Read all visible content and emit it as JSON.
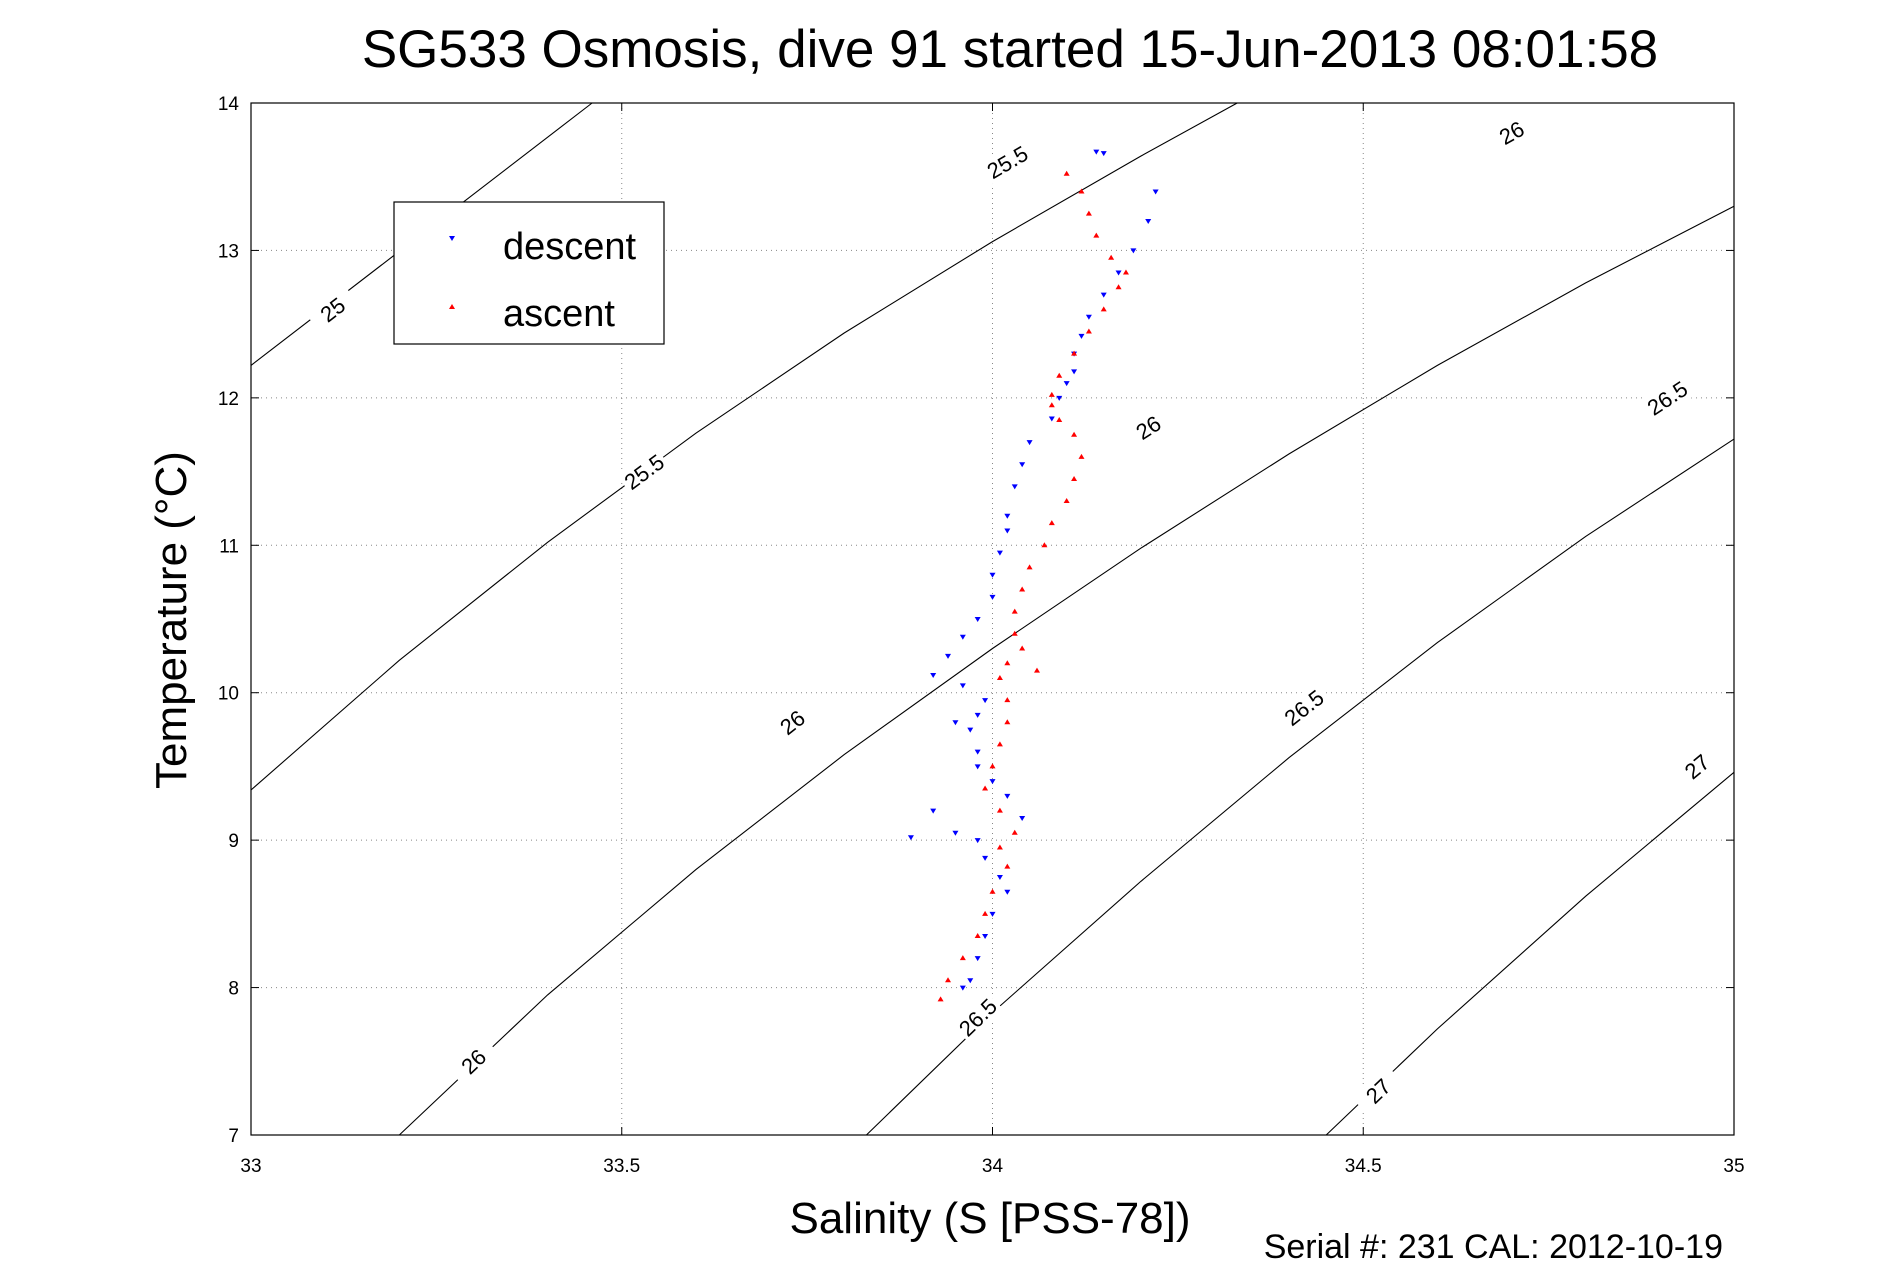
{
  "chart_data": {
    "type": "scatter",
    "title": "SG533 Osmosis, dive 91 started 15-Jun-2013 08:01:58",
    "xlabel": "Salinity (S [PSS-78])",
    "ylabel": "Temperature (°C)",
    "xlim": [
      33,
      35
    ],
    "ylim": [
      7,
      14
    ],
    "x_ticks": [
      "33",
      "33.5",
      "34",
      "34.5",
      "35"
    ],
    "y_ticks": [
      "7",
      "8",
      "9",
      "10",
      "11",
      "12",
      "13",
      "14"
    ],
    "grid": true,
    "legend_position": "top-left",
    "footer": "Serial #: 231  CAL: 2012-10-19",
    "contours": [
      {
        "label": "25",
        "points": [
          [
            33.0,
            12.22
          ],
          [
            33.46,
            14.0
          ]
        ],
        "labels_at": [
          [
            33.11,
            12.6
          ]
        ]
      },
      {
        "label": "25.5",
        "points": [
          [
            33.0,
            9.34
          ],
          [
            33.2,
            10.22
          ],
          [
            33.4,
            11.02
          ],
          [
            33.6,
            11.76
          ],
          [
            33.8,
            12.44
          ],
          [
            34.0,
            13.06
          ],
          [
            34.2,
            13.64
          ],
          [
            34.33,
            14.0
          ]
        ],
        "labels_at": [
          [
            33.53,
            11.5
          ],
          [
            34.02,
            13.6
          ]
        ]
      },
      {
        "label": "26",
        "points": [
          [
            33.2,
            7.0
          ],
          [
            33.4,
            7.95
          ],
          [
            33.6,
            8.8
          ],
          [
            33.8,
            9.58
          ],
          [
            34.0,
            10.3
          ],
          [
            34.2,
            10.98
          ],
          [
            34.4,
            11.62
          ],
          [
            34.6,
            12.22
          ],
          [
            34.8,
            12.78
          ],
          [
            35.0,
            13.3
          ]
        ],
        "labels_at": [
          [
            33.3,
            7.5
          ],
          [
            33.73,
            9.8
          ],
          [
            34.21,
            11.8
          ],
          [
            34.7,
            13.8
          ]
        ]
      },
      {
        "label": "26.5",
        "points": [
          [
            33.83,
            7.0
          ],
          [
            34.0,
            7.83
          ],
          [
            34.2,
            8.72
          ],
          [
            34.4,
            9.56
          ],
          [
            34.6,
            10.34
          ],
          [
            34.8,
            11.06
          ],
          [
            35.0,
            11.72
          ]
        ],
        "labels_at": [
          [
            33.98,
            7.8
          ],
          [
            34.42,
            9.9
          ],
          [
            34.91,
            12.0
          ]
        ]
      },
      {
        "label": "27",
        "points": [
          [
            34.45,
            7.0
          ],
          [
            34.6,
            7.72
          ],
          [
            34.8,
            8.62
          ],
          [
            35.0,
            9.46
          ]
        ],
        "labels_at": [
          [
            34.52,
            7.3
          ],
          [
            34.95,
            9.5
          ]
        ]
      }
    ],
    "series": [
      {
        "name": "descent",
        "color": "#0000ff",
        "marker": "triangle-down",
        "x": [
          34.14,
          34.15,
          34.22,
          34.21,
          34.19,
          34.17,
          34.15,
          34.13,
          34.12,
          34.11,
          34.11,
          34.1,
          34.09,
          34.08,
          34.05,
          34.04,
          34.03,
          34.02,
          34.02,
          34.01,
          34.0,
          34.0,
          33.98,
          33.96,
          33.94,
          33.92,
          33.96,
          33.99,
          33.98,
          33.97,
          33.95,
          33.98,
          33.98,
          34.0,
          34.02,
          33.92,
          33.89,
          33.95,
          34.04,
          33.98,
          33.99,
          34.01,
          34.02,
          34.0,
          33.99,
          33.98,
          33.97,
          33.96
        ],
        "y": [
          13.67,
          13.66,
          13.4,
          13.2,
          13.0,
          12.85,
          12.7,
          12.55,
          12.42,
          12.3,
          12.18,
          12.1,
          12.0,
          11.86,
          11.7,
          11.55,
          11.4,
          11.2,
          11.1,
          10.95,
          10.8,
          10.65,
          10.5,
          10.38,
          10.25,
          10.12,
          10.05,
          9.95,
          9.85,
          9.75,
          9.8,
          9.6,
          9.5,
          9.4,
          9.3,
          9.2,
          9.02,
          9.05,
          9.15,
          9.0,
          8.88,
          8.75,
          8.65,
          8.5,
          8.35,
          8.2,
          8.05,
          8.0
        ]
      },
      {
        "name": "ascent",
        "color": "#ff0000",
        "marker": "triangle-up",
        "x": [
          34.1,
          34.12,
          34.13,
          34.14,
          34.16,
          34.18,
          34.17,
          34.15,
          34.13,
          34.11,
          34.09,
          34.08,
          34.08,
          34.09,
          34.11,
          34.12,
          34.11,
          34.1,
          34.08,
          34.07,
          34.05,
          34.04,
          34.03,
          34.03,
          34.04,
          34.02,
          34.01,
          34.06,
          34.02,
          34.02,
          34.01,
          34.0,
          33.99,
          34.01,
          34.03,
          34.01,
          34.02,
          34.0,
          33.99,
          33.98,
          33.96,
          33.94,
          33.93
        ],
        "y": [
          13.52,
          13.4,
          13.25,
          13.1,
          12.95,
          12.85,
          12.75,
          12.6,
          12.45,
          12.3,
          12.15,
          12.02,
          11.95,
          11.85,
          11.75,
          11.6,
          11.45,
          11.3,
          11.15,
          11.0,
          10.85,
          10.7,
          10.55,
          10.4,
          10.3,
          10.2,
          10.1,
          10.15,
          9.95,
          9.8,
          9.65,
          9.5,
          9.35,
          9.2,
          9.05,
          8.95,
          8.82,
          8.65,
          8.5,
          8.35,
          8.2,
          8.05,
          7.92
        ]
      }
    ]
  }
}
